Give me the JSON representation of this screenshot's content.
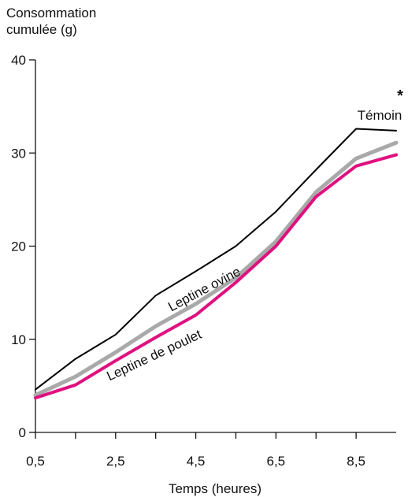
{
  "chart_data": {
    "type": "line",
    "title": "",
    "ylabel": "Consommation\ncumulée (g)",
    "xlabel": "Temps (heures)",
    "ylim": [
      0,
      40
    ],
    "xlim": [
      0.5,
      9.5
    ],
    "yticks": [
      0,
      10,
      20,
      30,
      40
    ],
    "xticks": [
      0.5,
      1.5,
      2.5,
      3.5,
      4.5,
      5.5,
      6.5,
      7.5,
      8.5
    ],
    "xtick_labels": [
      "0,5",
      "2,5",
      "4,5",
      "6,5",
      "8,5"
    ],
    "xtick_labeled_values": [
      0.5,
      2.5,
      4.5,
      6.5,
      8.5
    ],
    "grid": false,
    "significance_marker": "*",
    "x": [
      0.5,
      1.5,
      2.5,
      3.5,
      4.5,
      5.5,
      6.5,
      7.5,
      8.5,
      9.5
    ],
    "series": [
      {
        "name": "Témoin",
        "color": "#000000",
        "values": [
          4.6,
          7.9,
          10.5,
          14.7,
          17.3,
          20.0,
          23.7,
          28.2,
          32.6,
          32.4
        ]
      },
      {
        "name": "Leptine ovine",
        "color": "#a9a9a9",
        "values": [
          4.0,
          6.0,
          8.6,
          11.4,
          13.8,
          16.6,
          20.5,
          25.8,
          29.4,
          31.1
        ]
      },
      {
        "name": "Leptine de poulet",
        "color": "#e0107f",
        "values": [
          3.7,
          5.1,
          7.7,
          10.2,
          12.6,
          16.1,
          20.0,
          25.3,
          28.6,
          29.8
        ]
      }
    ]
  }
}
